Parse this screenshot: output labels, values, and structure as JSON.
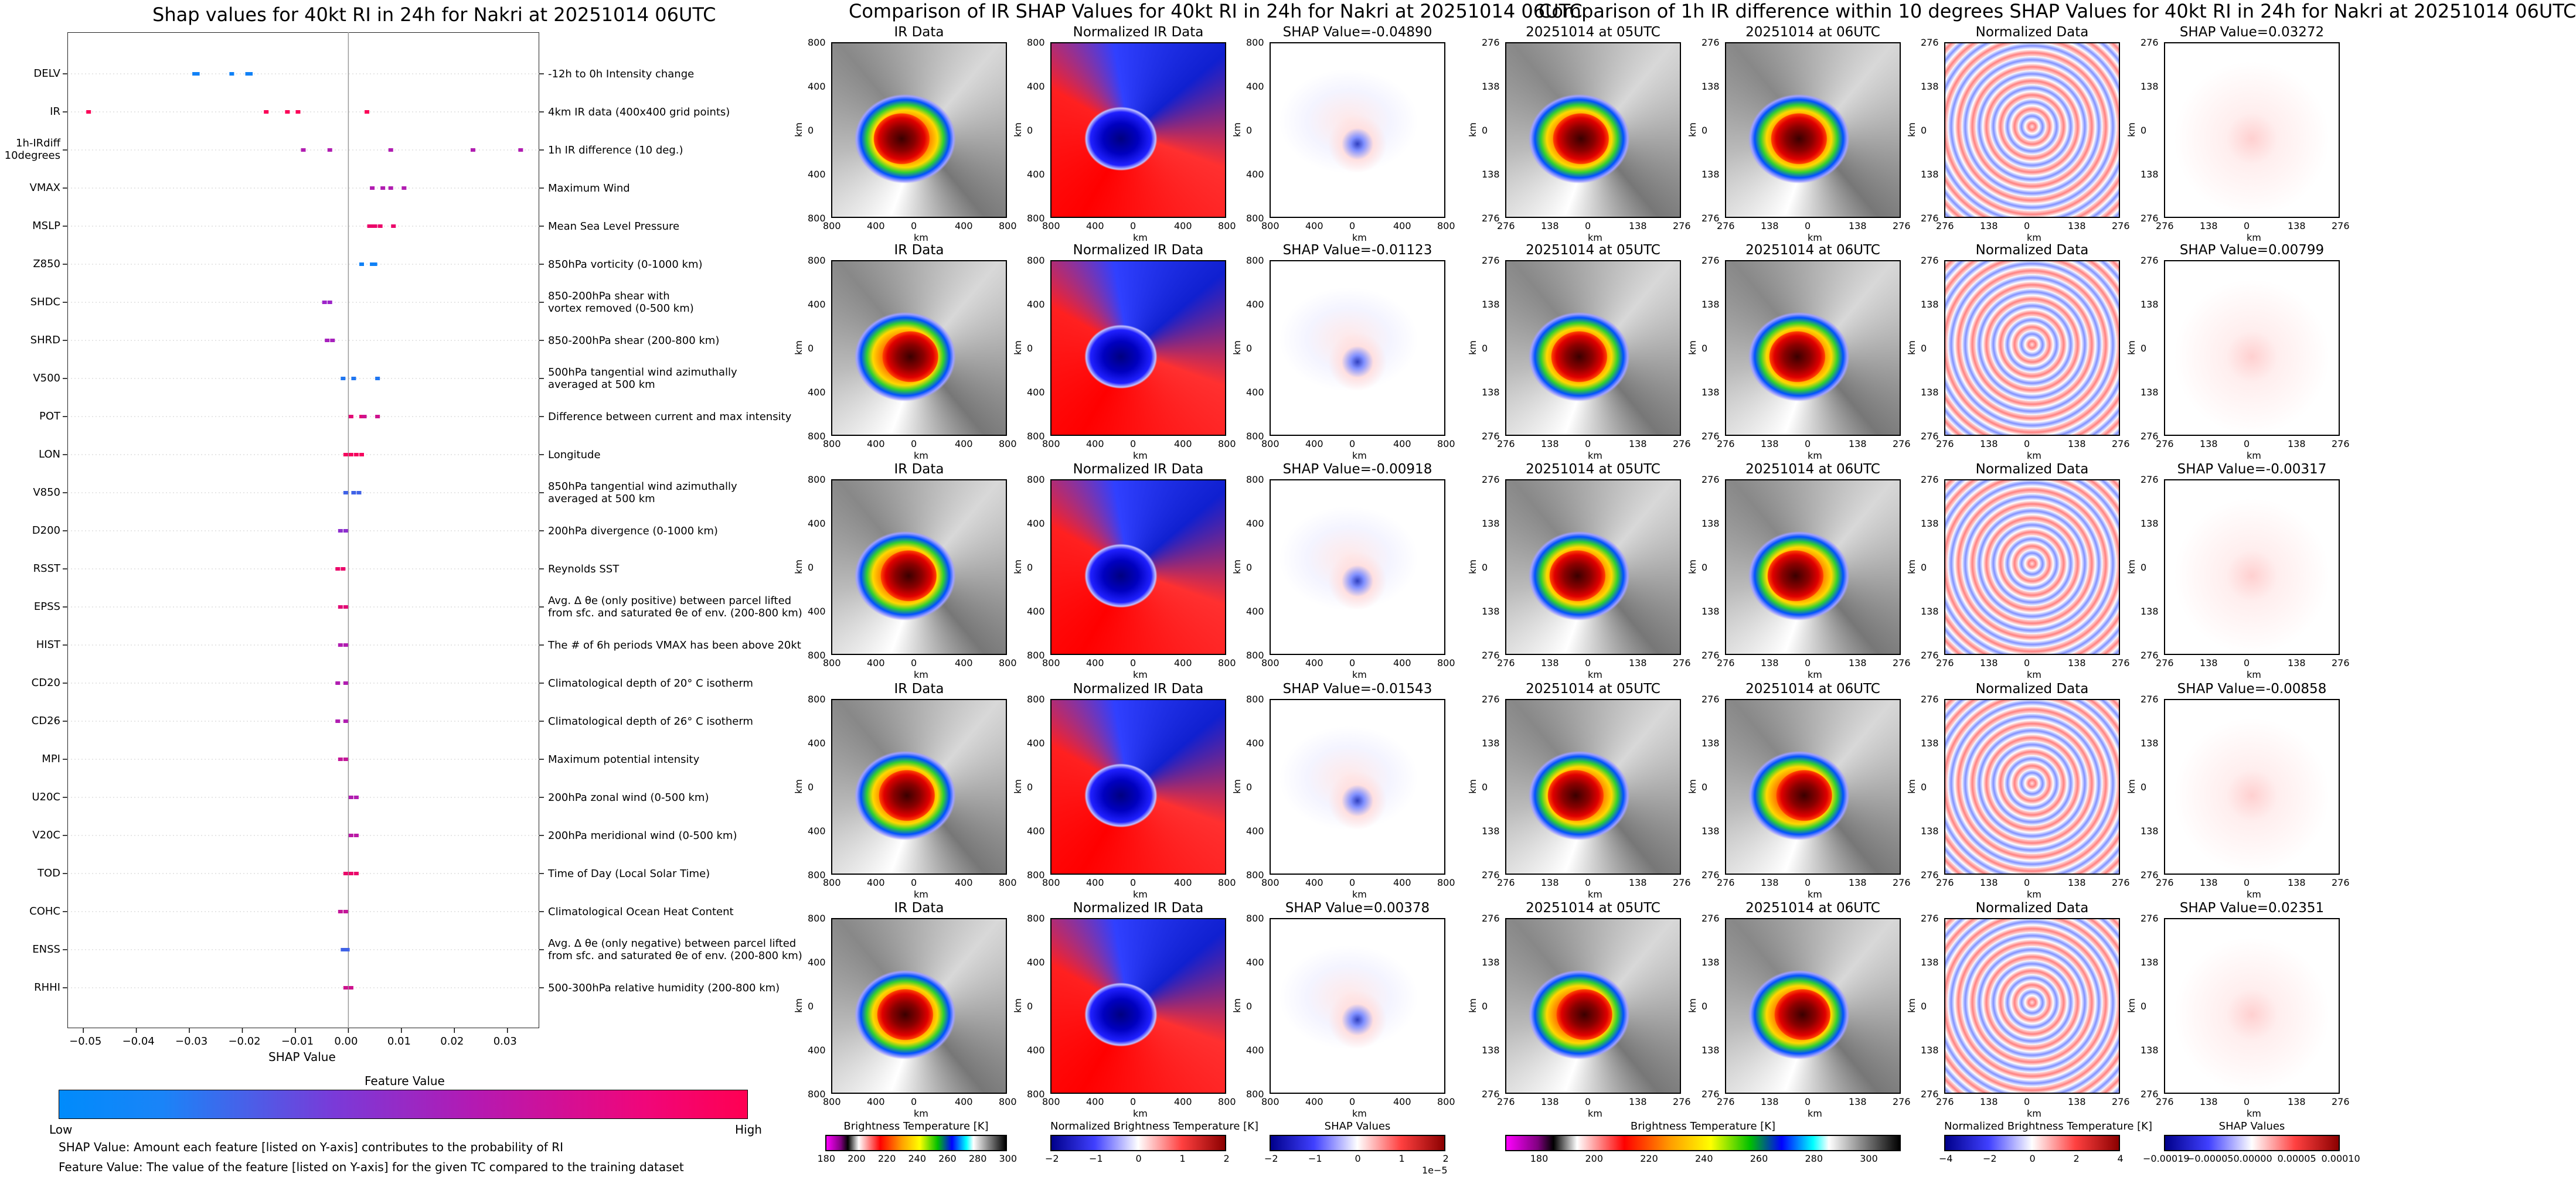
{
  "left_title": "Shap values for 40kt RI in 24h for Nakri at 20251014 06UTC",
  "mid_title": "Comparison of IR SHAP Values for 40kt RI in 24h for Nakri at 20251014 06UTC",
  "right_title": "Comparison of 1h IR difference within 10 degrees SHAP Values for 40kt RI in 24h for Nakri at 20251014 06UTC",
  "chart_data": [
    {
      "type": "scatter",
      "title": "Shap values for 40kt RI in 24h for Nakri at 20251014 06UTC",
      "xlabel": "SHAP Value",
      "xlim": [
        -0.053,
        0.036
      ],
      "xticks": [
        "−0.05",
        "−0.04",
        "−0.03",
        "−0.02",
        "−0.01",
        "0.00",
        "0.01",
        "0.02",
        "0.03"
      ],
      "xtick_values": [
        -0.05,
        -0.04,
        -0.03,
        -0.02,
        -0.01,
        0.0,
        0.01,
        0.02,
        0.03
      ],
      "features": [
        {
          "name": "DELV",
          "desc": "-12h to 0h Intensity change",
          "points": [
            [
              -0.029,
              0.05
            ],
            [
              -0.0285,
              0.05
            ],
            [
              -0.022,
              0.05
            ],
            [
              -0.019,
              0.05
            ],
            [
              -0.0185,
              0.05
            ]
          ]
        },
        {
          "name": "IR",
          "desc": "4km IR data (400x400 grid points)",
          "points": [
            [
              -0.049,
              0.98
            ],
            [
              -0.0155,
              0.98
            ],
            [
              -0.0115,
              0.98
            ],
            [
              -0.0095,
              0.98
            ],
            [
              0.0035,
              0.98
            ]
          ]
        },
        {
          "name": "1h-IRdiff\n10degrees",
          "desc": "1h IR difference (10 deg.)",
          "points": [
            [
              -0.0085,
              0.6
            ],
            [
              -0.0035,
              0.6
            ],
            [
              0.008,
              0.6
            ],
            [
              0.0235,
              0.6
            ],
            [
              0.0325,
              0.6
            ]
          ]
        },
        {
          "name": "VMAX",
          "desc": "Maximum Wind",
          "points": [
            [
              0.0045,
              0.6
            ],
            [
              0.0065,
              0.6
            ],
            [
              0.008,
              0.6
            ],
            [
              0.0105,
              0.6
            ]
          ]
        },
        {
          "name": "MSLP",
          "desc": "Mean Sea Level Pressure",
          "points": [
            [
              0.004,
              0.9
            ],
            [
              0.0045,
              0.9
            ],
            [
              0.005,
              0.9
            ],
            [
              0.006,
              0.9
            ],
            [
              0.0085,
              0.9
            ]
          ]
        },
        {
          "name": "Z850",
          "desc": "850hPa vorticity (0-1000 km)",
          "points": [
            [
              0.0025,
              0.05
            ],
            [
              0.0045,
              0.05
            ],
            [
              0.005,
              0.05
            ]
          ]
        },
        {
          "name": "SHDC",
          "desc": "850-200hPa shear with\nvortex removed (0-500 km)",
          "points": [
            [
              -0.0045,
              0.5
            ],
            [
              -0.0035,
              0.5
            ]
          ]
        },
        {
          "name": "SHRD",
          "desc": "850-200hPa shear (200-800 km)",
          "points": [
            [
              -0.004,
              0.55
            ],
            [
              -0.003,
              0.55
            ]
          ]
        },
        {
          "name": "V500",
          "desc": "500hPa tangential wind azimuthally\naveraged at 500 km",
          "points": [
            [
              -0.001,
              0.1
            ],
            [
              0.001,
              0.1
            ],
            [
              0.0055,
              0.1
            ]
          ]
        },
        {
          "name": "POT",
          "desc": "Difference between current and max intensity",
          "points": [
            [
              0.0005,
              0.85
            ],
            [
              0.0025,
              0.85
            ],
            [
              0.003,
              0.75
            ],
            [
              0.0055,
              0.75
            ]
          ]
        },
        {
          "name": "LON",
          "desc": "Longitude",
          "points": [
            [
              -0.0005,
              0.95
            ],
            [
              0.0005,
              0.95
            ],
            [
              0.0015,
              0.95
            ],
            [
              0.0025,
              0.95
            ]
          ]
        },
        {
          "name": "V850",
          "desc": "850hPa tangential wind azimuthally\naveraged at 500 km",
          "points": [
            [
              -0.0005,
              0.2
            ],
            [
              0.001,
              0.2
            ],
            [
              0.002,
              0.2
            ]
          ]
        },
        {
          "name": "D200",
          "desc": "200hPa divergence (0-1000 km)",
          "points": [
            [
              -0.0015,
              0.45
            ],
            [
              -0.0005,
              0.45
            ]
          ]
        },
        {
          "name": "RSST",
          "desc": "Reynolds SST",
          "points": [
            [
              -0.002,
              0.9
            ],
            [
              -0.001,
              0.9
            ]
          ]
        },
        {
          "name": "EPSS",
          "desc": "Avg. Δ θe (only positive) between parcel lifted\nfrom sfc. and saturated θe of env. (200-800 km)",
          "points": [
            [
              -0.0015,
              0.85
            ],
            [
              -0.0005,
              0.85
            ]
          ]
        },
        {
          "name": "HIST",
          "desc": "The # of 6h periods VMAX has been above 20kt",
          "points": [
            [
              -0.0015,
              0.6
            ],
            [
              -0.0005,
              0.6
            ]
          ]
        },
        {
          "name": "CD20",
          "desc": "Climatological depth of 20° C isotherm",
          "points": [
            [
              -0.002,
              0.6
            ],
            [
              -0.0005,
              0.6
            ]
          ]
        },
        {
          "name": "CD26",
          "desc": "Climatological depth of 26° C isotherm",
          "points": [
            [
              -0.002,
              0.6
            ],
            [
              -0.0005,
              0.6
            ]
          ]
        },
        {
          "name": "MPI",
          "desc": "Maximum potential intensity",
          "points": [
            [
              -0.0015,
              0.7
            ],
            [
              -0.0005,
              0.7
            ]
          ]
        },
        {
          "name": "U20C",
          "desc": "200hPa zonal wind (0-500 km)",
          "points": [
            [
              0.0005,
              0.6
            ],
            [
              0.0015,
              0.6
            ]
          ]
        },
        {
          "name": "V20C",
          "desc": "200hPa meridional wind (0-500 km)",
          "points": [
            [
              0.0005,
              0.65
            ],
            [
              0.0015,
              0.65
            ]
          ]
        },
        {
          "name": "TOD",
          "desc": "Time of Day (Local Solar Time)",
          "points": [
            [
              -0.0005,
              0.9
            ],
            [
              0.0005,
              0.9
            ],
            [
              0.0015,
              0.9
            ]
          ]
        },
        {
          "name": "COHC",
          "desc": "Climatological Ocean Heat Content",
          "points": [
            [
              -0.0015,
              0.7
            ],
            [
              -0.0005,
              0.7
            ]
          ]
        },
        {
          "name": "ENSS",
          "desc": "Avg. Δ θe (only negative) between parcel lifted\nfrom sfc. and saturated θe of env. (200-800 km)",
          "points": [
            [
              -0.001,
              0.2
            ],
            [
              -0.0002,
              0.2
            ]
          ]
        },
        {
          "name": "RHHI",
          "desc": "500-300hPa relative humidity (200-800 km)",
          "points": [
            [
              -0.0005,
              0.75
            ],
            [
              0.0005,
              0.75
            ]
          ]
        }
      ],
      "legend_title": "Feature Value",
      "legend_low": "Low",
      "legend_high": "High",
      "colors": {
        "low": "#008bfb",
        "high": "#ff0052"
      }
    },
    {
      "type": "heatmap",
      "note": "IR SHAP comparison grid",
      "rows": [
        {
          "titles": [
            "IR Data",
            "Normalized IR Data",
            "SHAP Value=-0.04890"
          ]
        },
        {
          "titles": [
            "IR Data",
            "Normalized IR Data",
            "SHAP Value=-0.01123"
          ]
        },
        {
          "titles": [
            "IR Data",
            "Normalized IR Data",
            "SHAP Value=-0.00918"
          ]
        },
        {
          "titles": [
            "IR Data",
            "Normalized IR Data",
            "SHAP Value=-0.01543"
          ]
        },
        {
          "titles": [
            "IR Data",
            "Normalized IR Data",
            "SHAP Value=0.00378"
          ]
        }
      ],
      "ticks": [
        "800",
        "400",
        "0",
        "400",
        "800"
      ],
      "axis_label": "km",
      "colorbars": [
        {
          "title": "Brightness Temperature [K]",
          "ticks": [
            "180",
            "200",
            "220",
            "240",
            "260",
            "280",
            "300"
          ]
        },
        {
          "title": "Normalized Brightness Temperature [K]",
          "ticks": [
            "−2",
            "−1",
            "0",
            "1",
            "2"
          ]
        },
        {
          "title": "SHAP Values",
          "ticks": [
            "−2",
            "−1",
            "0",
            "1",
            "2"
          ],
          "offset": "1e−5"
        }
      ]
    },
    {
      "type": "heatmap",
      "note": "1h IR difference SHAP comparison grid",
      "rows": [
        {
          "titles": [
            "20251014 at 05UTC",
            "20251014 at 06UTC",
            "Normalized Data",
            "SHAP Value=0.03272"
          ]
        },
        {
          "titles": [
            "20251014 at 05UTC",
            "20251014 at 06UTC",
            "Normalized Data",
            "SHAP Value=0.00799"
          ]
        },
        {
          "titles": [
            "20251014 at 05UTC",
            "20251014 at 06UTC",
            "Normalized Data",
            "SHAP Value=-0.00317"
          ]
        },
        {
          "titles": [
            "20251014 at 05UTC",
            "20251014 at 06UTC",
            "Normalized Data",
            "SHAP Value=-0.00858"
          ]
        },
        {
          "titles": [
            "20251014 at 05UTC",
            "20251014 at 06UTC",
            "Normalized Data",
            "SHAP Value=0.02351"
          ]
        }
      ],
      "ticks": [
        "276",
        "138",
        "0",
        "138",
        "276"
      ],
      "axis_label": "km",
      "colorbars": [
        {
          "title": "Brightness Temperature [K]",
          "ticks": [
            "180",
            "200",
            "220",
            "240",
            "260",
            "280",
            "300"
          ]
        },
        {
          "title": "Normalized Brightness Temperature [K]",
          "ticks": [
            "−4",
            "−2",
            "0",
            "2",
            "4"
          ]
        },
        {
          "title": "SHAP Values",
          "ticks": [
            "−0.00019",
            "−0.00005",
            "0.00000",
            "0.00005",
            "0.00010"
          ]
        }
      ]
    }
  ],
  "notes": [
    "SHAP Value: Amount each feature [listed on Y-axis] contributes to the probability of RI",
    "Feature Value: The value of the feature [listed on Y-axis] for the given TC compared to the training dataset"
  ]
}
